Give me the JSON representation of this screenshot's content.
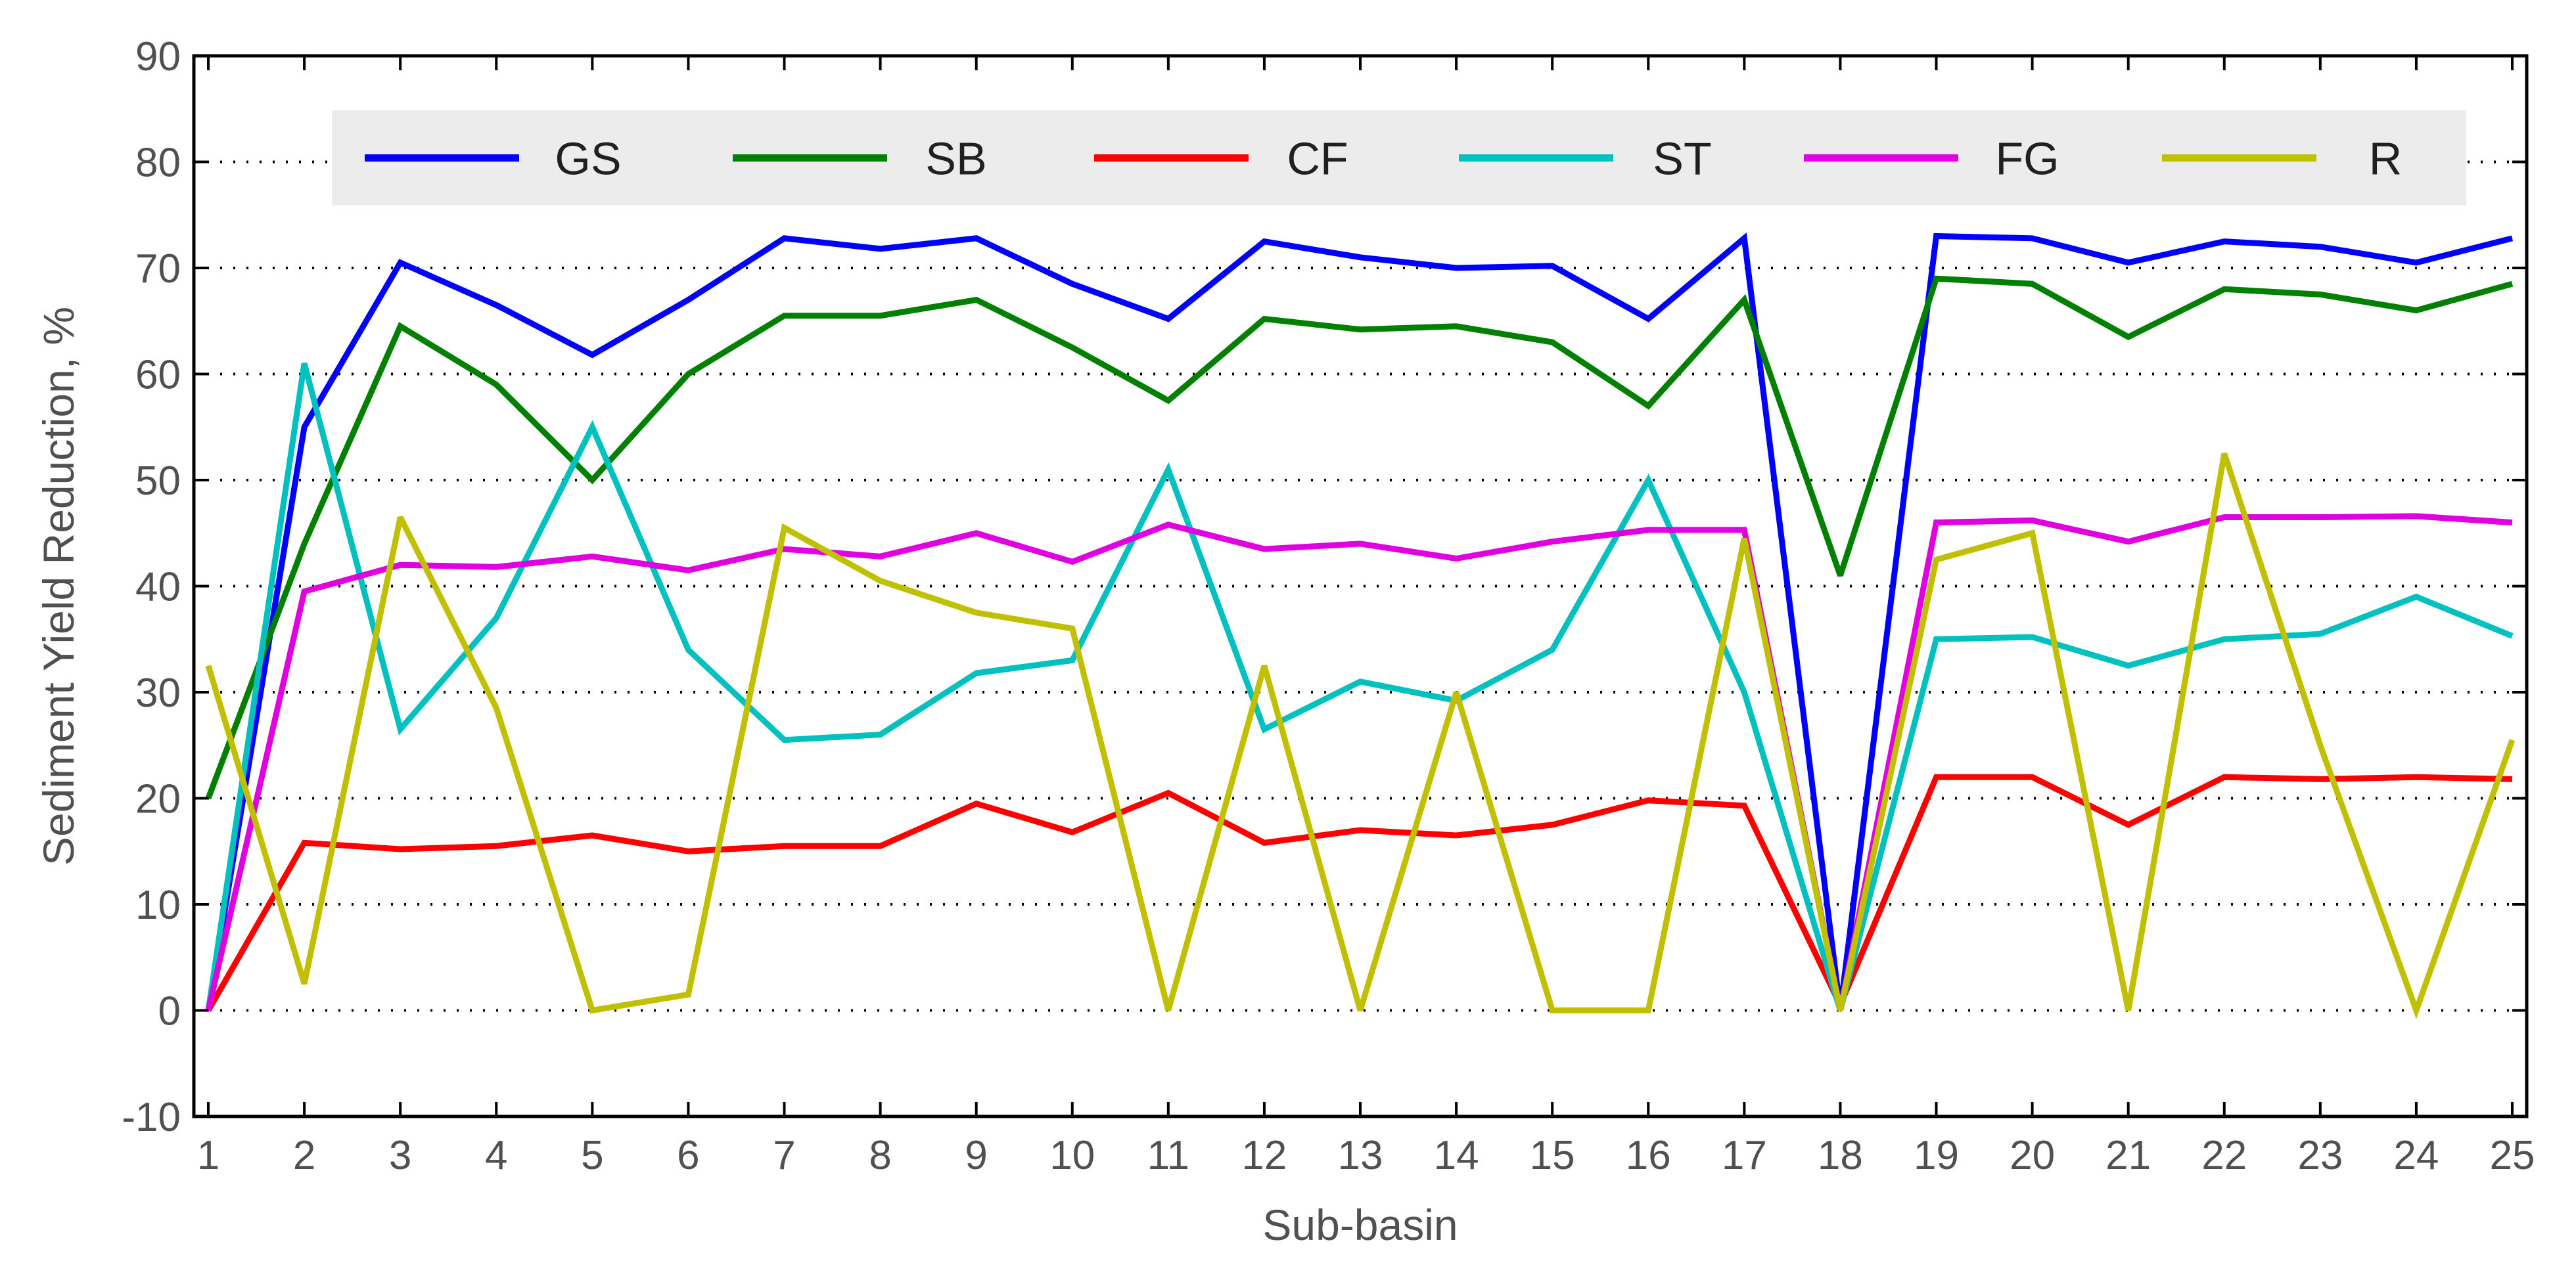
{
  "chart_data": {
    "type": "line",
    "xlabel": "Sub-basin",
    "ylabel": "Sediment Yield Reduction, %",
    "xlim": [
      1,
      25
    ],
    "ylim": [
      -10,
      90
    ],
    "x": [
      1,
      2,
      3,
      4,
      5,
      6,
      7,
      8,
      9,
      10,
      11,
      12,
      13,
      14,
      15,
      16,
      17,
      18,
      19,
      20,
      21,
      22,
      23,
      24,
      25
    ],
    "x_ticks": [
      "1",
      "2",
      "3",
      "4",
      "5",
      "6",
      "7",
      "8",
      "9",
      "10",
      "11",
      "12",
      "13",
      "14",
      "15",
      "16",
      "17",
      "18",
      "19",
      "20",
      "21",
      "22",
      "23",
      "24",
      "25"
    ],
    "y_ticks": [
      "-10",
      "0",
      "10",
      "20",
      "30",
      "40",
      "50",
      "60",
      "70",
      "80",
      "90"
    ],
    "grid": "horizontal dotted",
    "legend_position": "top",
    "series": [
      {
        "name": "GS",
        "color": "#0000ff",
        "values": [
          0,
          55,
          70.5,
          66.5,
          61.8,
          67,
          72.8,
          71.8,
          72.8,
          68.5,
          65.2,
          72.5,
          71,
          70,
          70.2,
          65.2,
          72.8,
          0,
          73,
          72.8,
          70.5,
          72.5,
          72,
          70.5,
          72.8
        ]
      },
      {
        "name": "SB",
        "color": "#008000",
        "values": [
          20,
          44,
          64.5,
          59,
          50,
          60,
          65.5,
          65.5,
          67,
          62.5,
          57.5,
          65.2,
          64.2,
          64.5,
          63,
          57,
          67,
          41,
          69,
          68.5,
          63.5,
          68,
          67.5,
          66,
          68.5
        ]
      },
      {
        "name": "CF",
        "color": "#ff0000",
        "values": [
          0,
          15.8,
          15.2,
          15.5,
          16.5,
          15,
          15.5,
          15.5,
          19.5,
          16.8,
          20.5,
          15.8,
          17,
          16.5,
          17.5,
          19.8,
          19.3,
          0.5,
          22,
          22,
          17.5,
          22,
          21.8,
          22,
          21.8
        ]
      },
      {
        "name": "ST",
        "color": "#00c0c0",
        "values": [
          0,
          61,
          26.5,
          37,
          55,
          34,
          25.5,
          26,
          31.8,
          33,
          51,
          26.5,
          31,
          29.2,
          34,
          50,
          30,
          0,
          35,
          35.2,
          32.5,
          35,
          35.5,
          39,
          35.3
        ]
      },
      {
        "name": "FG",
        "color": "#e000e0",
        "values": [
          0,
          39.5,
          42,
          41.8,
          42.8,
          41.5,
          43.5,
          42.8,
          45,
          42.3,
          45.8,
          43.5,
          44,
          42.6,
          44.2,
          45.3,
          45.3,
          0,
          46,
          46.2,
          44.2,
          46.5,
          46.5,
          46.6,
          46
        ]
      },
      {
        "name": "R",
        "color": "#c0c000",
        "values": [
          32.5,
          2.5,
          46.5,
          28.5,
          0,
          1.5,
          45.5,
          40.5,
          37.5,
          36,
          0,
          32.5,
          0,
          30,
          0,
          0,
          44.5,
          0,
          42.5,
          45,
          0,
          52.5,
          25,
          0,
          25.5
        ]
      }
    ]
  }
}
